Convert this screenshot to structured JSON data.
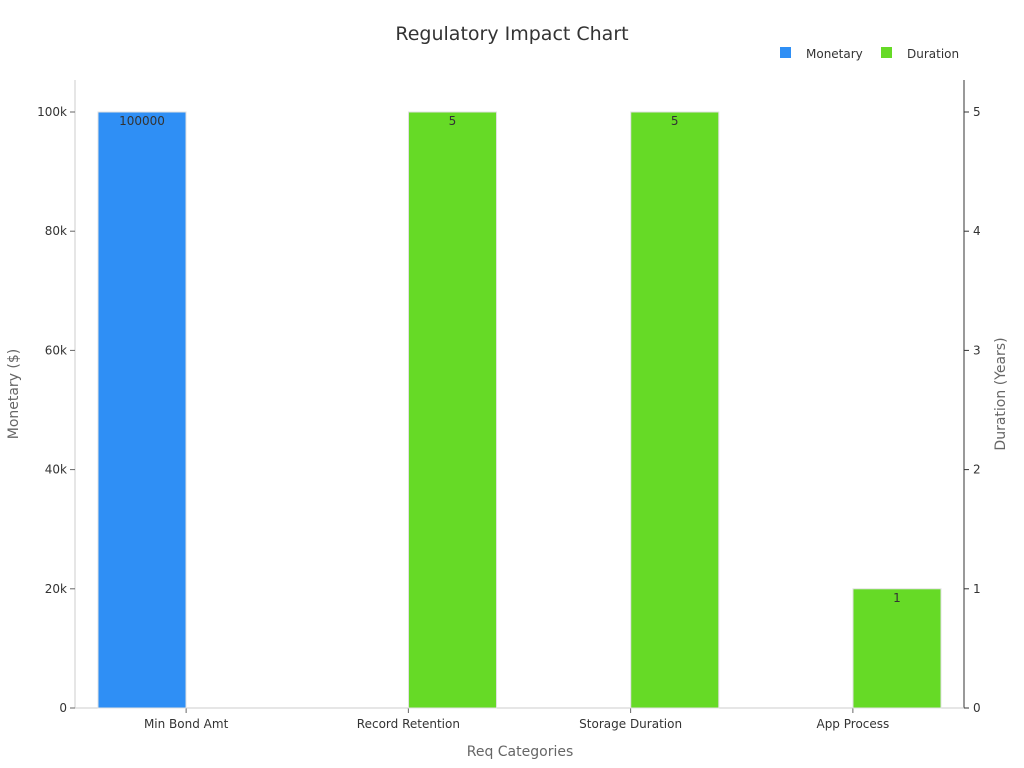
{
  "chart_data": {
    "type": "bar",
    "title": "Regulatory Impact Chart",
    "xlabel": "Req Categories",
    "ylabel": "Monetary ($)",
    "y2label": "Duration (Years)",
    "categories": [
      "Min Bond Amt",
      "Record Retention",
      "Storage Duration",
      "App Process"
    ],
    "ylim": [
      0,
      105000
    ],
    "y2lim": [
      0,
      5.25
    ],
    "yticks": [
      {
        "value": 0,
        "label": "0"
      },
      {
        "value": 20000,
        "label": "20k"
      },
      {
        "value": 40000,
        "label": "40k"
      },
      {
        "value": 60000,
        "label": "60k"
      },
      {
        "value": 80000,
        "label": "80k"
      },
      {
        "value": 100000,
        "label": "100k"
      }
    ],
    "y2ticks": [
      {
        "value": 0,
        "label": "0"
      },
      {
        "value": 1,
        "label": "1"
      },
      {
        "value": 2,
        "label": "2"
      },
      {
        "value": 3,
        "label": "3"
      },
      {
        "value": 4,
        "label": "4"
      },
      {
        "value": 5,
        "label": "5"
      }
    ],
    "series": [
      {
        "name": "Monetary",
        "axis": "left",
        "color": "#2f8ff5",
        "values": [
          100000,
          null,
          null,
          null
        ],
        "labels": [
          "100000",
          null,
          null,
          null
        ]
      },
      {
        "name": "Duration",
        "axis": "right",
        "color": "#66da26",
        "values": [
          null,
          5,
          5,
          1
        ],
        "labels": [
          null,
          "5",
          "5",
          "1"
        ]
      }
    ],
    "legend": "top-right",
    "grid": false
  }
}
